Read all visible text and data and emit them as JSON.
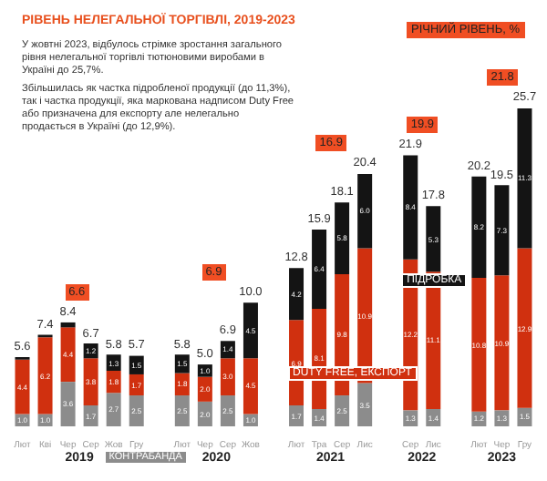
{
  "chart_data": {
    "type": "bar",
    "stacked": true,
    "title": "РІВЕНЬ НЕЛЕГАЛЬНОЇ ТОРГІВЛІ, 2019-2023",
    "categories": [
      "Лют",
      "Кві",
      "Чер",
      "Сер",
      "Жов",
      "Гру",
      null,
      "Лют",
      "Чер",
      "Сер",
      "Жов",
      null,
      "Лют",
      "Тра",
      "Сер",
      "Лис",
      null,
      "Сер",
      "Лис",
      null,
      "Лют",
      "Чер",
      "Гру"
    ],
    "series": [
      {
        "name": "КОНТРАБАНДА",
        "color": "#8c8c8c",
        "values": [
          1.0,
          1.0,
          3.6,
          1.7,
          2.7,
          2.5,
          null,
          2.5,
          2.0,
          2.5,
          1.0,
          null,
          1.7,
          1.4,
          2.5,
          3.5,
          null,
          1.3,
          1.4,
          null,
          1.2,
          1.3,
          1.5
        ],
        "value_labels": [
          "1.0",
          "1.0",
          "3.6",
          "1.7",
          "2.7",
          "2.5",
          null,
          "2.5",
          "2.0",
          "2.5",
          "1.0",
          null,
          "1.7",
          "1.4",
          "2.5",
          "3.5",
          null,
          "1.3",
          "1.4",
          null,
          "1.2",
          "1.3",
          "1.5"
        ]
      },
      {
        "name": "DUTY FREE, ЕКСПОРТ",
        "color": "#d0300f",
        "values": [
          4.4,
          6.2,
          4.4,
          3.8,
          1.8,
          1.7,
          null,
          1.8,
          2.0,
          3.0,
          4.5,
          null,
          6.9,
          8.1,
          9.8,
          10.9,
          null,
          12.2,
          11.1,
          null,
          10.8,
          10.9,
          12.9
        ],
        "value_labels": [
          "4.4",
          "6.2",
          "4.4",
          "3.8",
          "1.8",
          "1.7",
          null,
          "1.8",
          "2.0",
          "3.0",
          "4.5",
          null,
          "6.9",
          "8.1",
          "9.8",
          "10.9",
          null,
          "12.2",
          "11.1",
          null,
          "10.8",
          "10.9",
          "12.9"
        ]
      },
      {
        "name": "ПІДРОБКА",
        "color": "#141414",
        "values": [
          0.2,
          0.2,
          0.4,
          1.2,
          1.3,
          1.5,
          null,
          1.5,
          1.0,
          1.4,
          4.5,
          null,
          4.2,
          6.4,
          5.8,
          6.0,
          null,
          8.4,
          5.3,
          null,
          8.2,
          7.3,
          11.3
        ],
        "value_labels": [
          null,
          null,
          null,
          "1.2",
          "1.3",
          "1.5",
          null,
          "1.5",
          "1.0",
          "1.4",
          "4.5",
          null,
          "4.2",
          "6.4",
          "5.8",
          "6.0",
          null,
          "8.4",
          "5.3",
          null,
          "8.2",
          "7.3",
          "11.3"
        ]
      }
    ],
    "totals": [
      "5.6",
      "7.4",
      "8.4",
      "6.7",
      "5.8",
      "5.7",
      null,
      "5.8",
      "5.0",
      "6.9",
      "10.0",
      null,
      "12.8",
      "15.9",
      "18.1",
      "20.4",
      null,
      "21.9",
      "17.8",
      null,
      "20.2",
      "19.5",
      "25.7"
    ],
    "annotations": [
      "У жовтні 2023, відбулось стрімке зростання загального рівня нелегальної торгівлі тютюновими виробами в Україні до 25,7%.",
      "Збільшилась як частка підробленої продукції (до 11,3%), так і частка продукції, яка маркована надписом Duty Free або призначена для експорту але нелегально продається в Україні (до 12,9%).",
      "РІЧНИЙ РІВЕНЬ, %",
      "2019",
      "2020",
      "2021",
      "2022",
      "2023",
      "6.6",
      "6.9",
      "16.9",
      "19.9",
      "21.8"
    ],
    "grid": false
  }
}
